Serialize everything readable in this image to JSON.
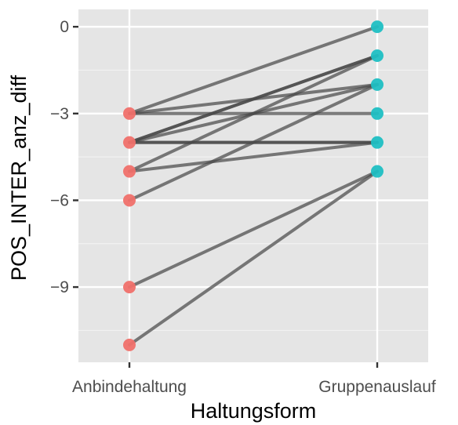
{
  "chart_data": {
    "type": "line",
    "title": "",
    "xlabel": "Haltungsform",
    "ylabel": "POS_INTER_anz_diff",
    "categories": [
      "Anbindehaltung",
      "Gruppenauslauf"
    ],
    "y_ticks": [
      0,
      -3,
      -6,
      -9
    ],
    "ylim": [
      -11.6,
      0.6
    ],
    "grid": true,
    "legend": "none",
    "colors": {
      "panel": "#e5e5e5",
      "grid": "#ffffff",
      "line": "#4a4a4a",
      "Anbindehaltung": "#f0706a",
      "Gruppenauslauf": "#1fbfc3"
    },
    "pairs": [
      {
        "from": -3,
        "to": -3
      },
      {
        "from": -3,
        "to": -2
      },
      {
        "from": -4,
        "to": -1
      },
      {
        "from": -4,
        "to": -1
      },
      {
        "from": -4,
        "to": -2
      },
      {
        "from": -4,
        "to": -4
      },
      {
        "from": -4,
        "to": -4
      },
      {
        "from": -5,
        "to": -1
      },
      {
        "from": -5,
        "to": -4
      },
      {
        "from": -6,
        "to": -2
      },
      {
        "from": -3,
        "to": 0
      },
      {
        "from": -9,
        "to": -5
      },
      {
        "from": -11,
        "to": -5
      }
    ],
    "points_left": [
      -3,
      -4,
      -5,
      -6,
      -9,
      -11
    ],
    "points_right": [
      0,
      -1,
      -2,
      -3,
      -4,
      -5
    ]
  }
}
